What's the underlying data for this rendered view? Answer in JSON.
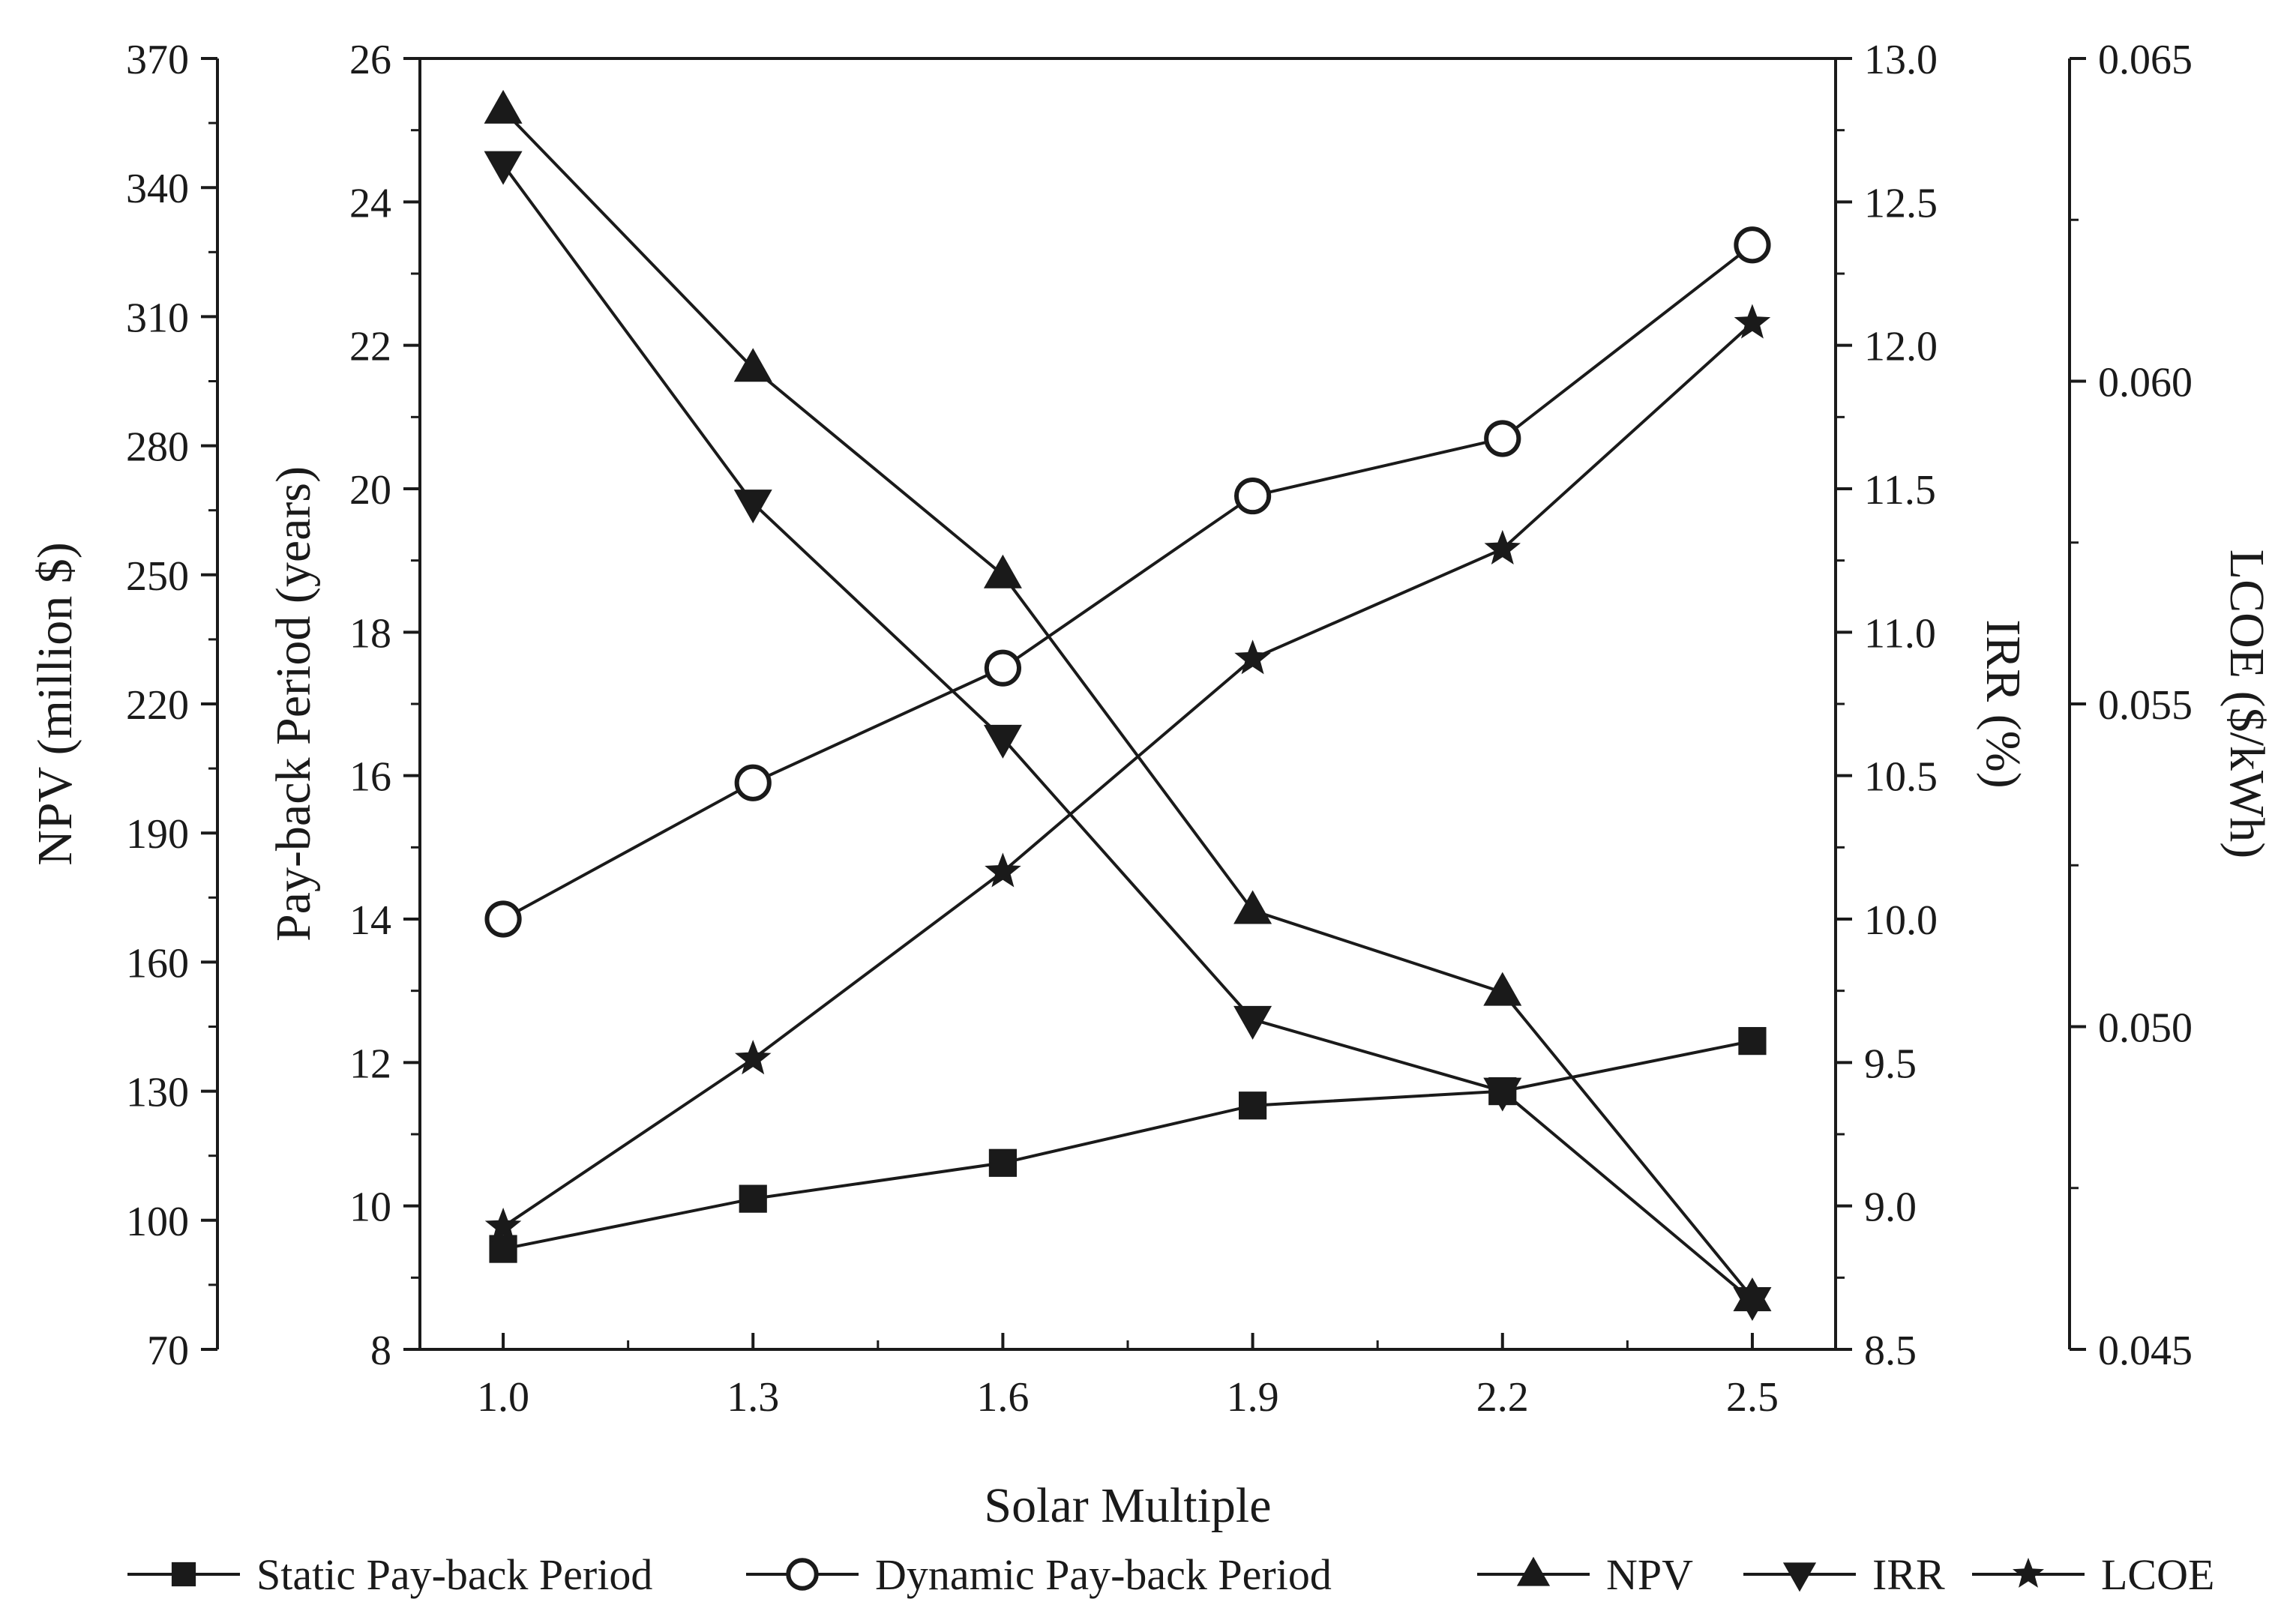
{
  "chart_data": {
    "type": "line",
    "xlabel": "Solar Multiple",
    "x": [
      1.0,
      1.3,
      1.6,
      1.9,
      2.2,
      2.5
    ],
    "x_tick_labels": [
      "1.0",
      "1.3",
      "1.6",
      "1.9",
      "2.2",
      "2.5"
    ],
    "xlim": [
      0.9,
      2.6
    ],
    "axes": [
      {
        "id": "npv",
        "label": "NPV (million $)",
        "position": "outer-left",
        "ylim": [
          70,
          370
        ],
        "ticks": [
          70,
          100,
          130,
          160,
          190,
          220,
          250,
          280,
          310,
          340,
          370
        ],
        "tick_labels": [
          "70",
          "100",
          "130",
          "160",
          "190",
          "220",
          "250",
          "280",
          "310",
          "340",
          "370"
        ]
      },
      {
        "id": "payback",
        "label": "Pay-back Period (years)",
        "position": "inner-left",
        "ylim": [
          8,
          26
        ],
        "ticks": [
          8,
          10,
          12,
          14,
          16,
          18,
          20,
          22,
          24,
          26
        ],
        "tick_labels": [
          "8",
          "10",
          "12",
          "14",
          "16",
          "18",
          "20",
          "22",
          "24",
          "26"
        ]
      },
      {
        "id": "irr",
        "label": "IRR (%)",
        "position": "inner-right",
        "ylim": [
          8.5,
          13.0
        ],
        "ticks": [
          8.5,
          9.0,
          9.5,
          10.0,
          10.5,
          11.0,
          11.5,
          12.0,
          12.5,
          13.0
        ],
        "tick_labels": [
          "8.5",
          "9.0",
          "9.5",
          "10.0",
          "10.5",
          "11.0",
          "11.5",
          "12.0",
          "12.5",
          "13.0"
        ]
      },
      {
        "id": "lcoe",
        "label": "LCOE ($/kWh)",
        "position": "outer-right",
        "ylim": [
          0.045,
          0.065
        ],
        "ticks": [
          0.045,
          0.05,
          0.055,
          0.06,
          0.065
        ],
        "tick_labels": [
          "0.045",
          "0.050",
          "0.055",
          "0.060",
          "0.065"
        ]
      }
    ],
    "series": [
      {
        "name": "Static Pay-back Period",
        "axis": "payback",
        "marker": "square",
        "values": [
          9.4,
          10.1,
          10.6,
          11.4,
          11.6,
          12.3
        ]
      },
      {
        "name": "Dynamic Pay-back Period",
        "axis": "payback",
        "marker": "circle",
        "values": [
          14.0,
          15.9,
          17.5,
          19.9,
          20.7,
          23.4
        ]
      },
      {
        "name": "NPV",
        "axis": "npv",
        "marker": "triangle-up",
        "values": [
          358,
          298,
          250,
          172,
          153,
          82
        ]
      },
      {
        "name": "IRR",
        "axis": "irr",
        "marker": "triangle-down",
        "values": [
          12.63,
          11.45,
          10.63,
          9.65,
          9.4,
          8.67
        ]
      },
      {
        "name": "LCOE",
        "axis": "lcoe",
        "marker": "star",
        "values": [
          0.0469,
          0.0495,
          0.0524,
          0.0557,
          0.0574,
          0.0609
        ]
      }
    ],
    "legend_position": "bottom",
    "grid": false
  }
}
